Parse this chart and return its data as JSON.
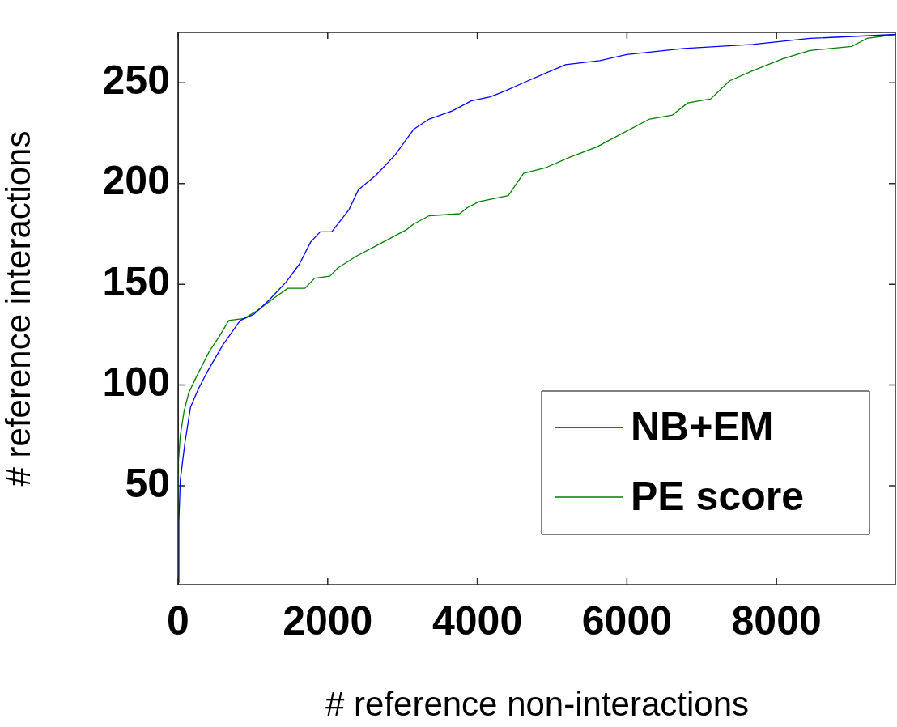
{
  "chart_data": {
    "type": "line",
    "xlabel": "# reference non-interactions",
    "ylabel": "# reference interactions",
    "xlim": [
      0,
      9600
    ],
    "ylim": [
      1,
      275
    ],
    "xticks": [
      0,
      2000,
      4000,
      6000,
      8000
    ],
    "yticks": [
      50,
      100,
      150,
      200,
      250
    ],
    "grid": false,
    "legend": "bottom right",
    "marker": "none",
    "line_style": "solid",
    "series": [
      {
        "name": "NB+EM",
        "color": "#0000ff",
        "x": [
          0,
          10,
          30,
          90,
          166,
          270,
          397,
          600,
          830,
          1009,
          1213,
          1442,
          1622,
          1773,
          1900,
          2054,
          2284,
          2412,
          2642,
          2897,
          3152,
          3357,
          3663,
          3918,
          4173,
          4378,
          4617,
          4925,
          5180,
          5639,
          5997,
          6762,
          7681,
          8447,
          9600
        ],
        "values": [
          2,
          32,
          53,
          71,
          89,
          98,
          107,
          120,
          132,
          135,
          142,
          151,
          160,
          171,
          176,
          176,
          187,
          197,
          204,
          214,
          227,
          232,
          236,
          241,
          243,
          246,
          250,
          255,
          259,
          261,
          264,
          267,
          269,
          272,
          274
        ]
      },
      {
        "name": "PE score",
        "color": "#008000",
        "x": [
          0,
          5,
          29,
          80,
          141,
          243,
          422,
          549,
          677,
          881,
          1060,
          1315,
          1468,
          1697,
          1826,
          2029,
          2132,
          2387,
          2642,
          2846,
          3051,
          3152,
          3357,
          3765,
          3867,
          4020,
          4414,
          4618,
          4925,
          5231,
          5588,
          5895,
          6303,
          6609,
          6813,
          7120,
          7375,
          7681,
          8090,
          8447,
          9005,
          9211,
          9600
        ],
        "values": [
          2,
          62,
          75,
          87,
          96,
          104,
          117,
          124,
          132,
          133,
          137,
          144,
          148,
          148,
          153,
          154,
          158,
          164,
          169,
          173,
          177,
          180,
          184,
          185,
          188,
          191,
          194,
          205,
          208,
          213,
          218,
          224,
          232,
          234,
          240,
          242,
          251,
          256,
          262,
          266,
          268,
          272,
          274
        ]
      }
    ]
  }
}
